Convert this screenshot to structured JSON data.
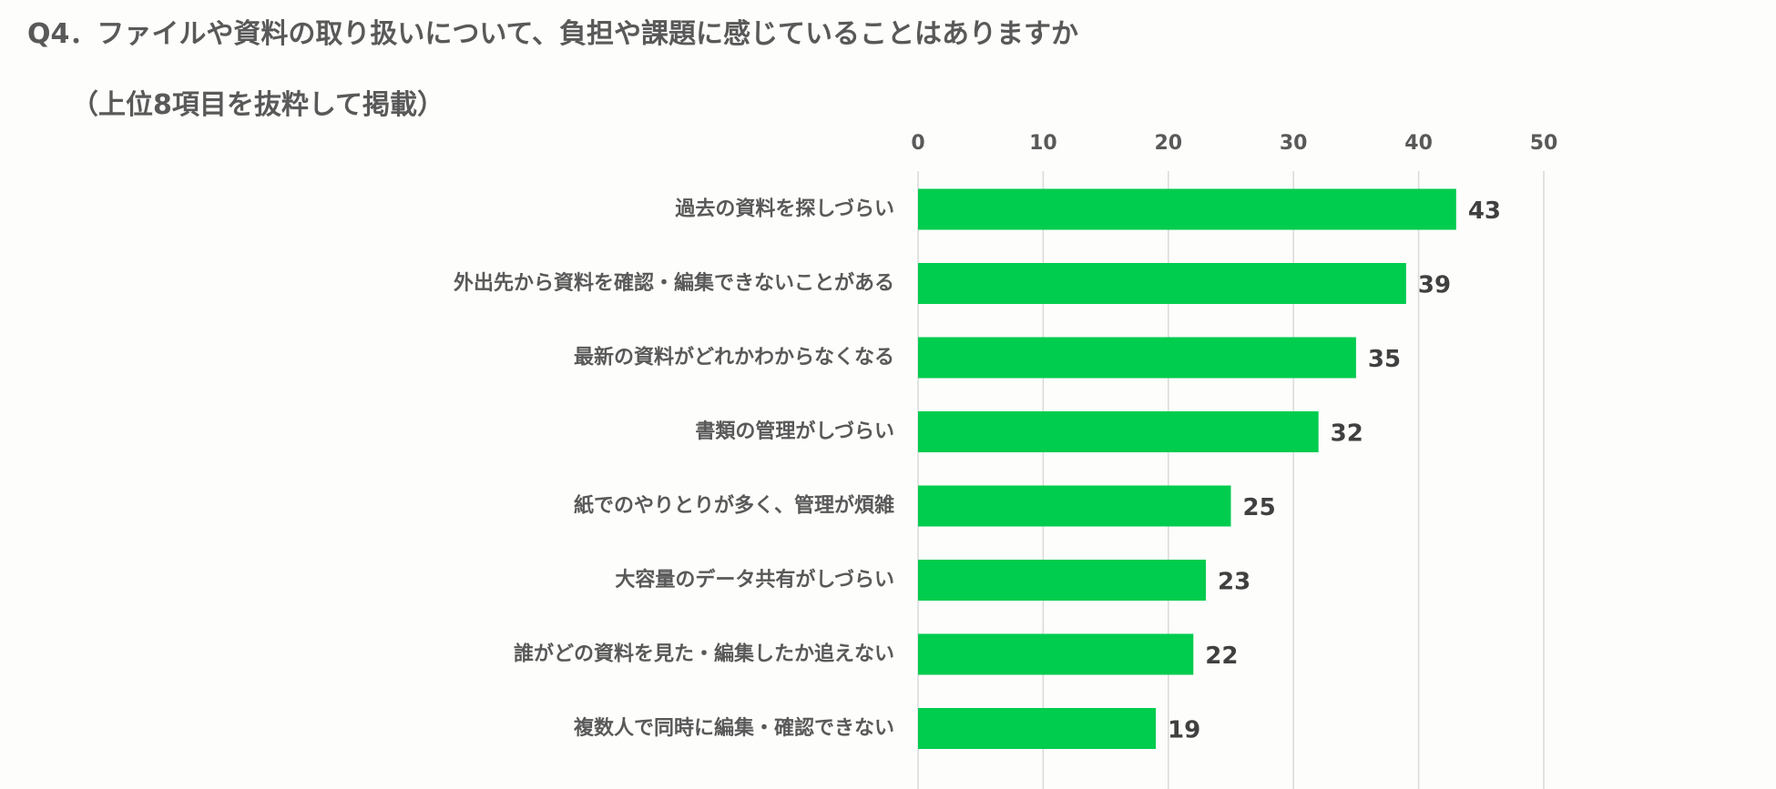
{
  "title": {
    "line1": "Q4．ファイルや資料の取り扱いについて、負担や課題に感じていることはありますか",
    "line2": "（上位8項目を抜粋して掲載）"
  },
  "chart_data": {
    "type": "bar",
    "orientation": "horizontal",
    "categories": [
      "過去の資料を探しづらい",
      "外出先から資料を確認・編集できないことがある",
      "最新の資料がどれかわからなくなる",
      "書類の管理がしづらい",
      "紙でのやりとりが多く、管理が煩雑",
      "大容量のデータ共有がしづらい",
      "誰がどの資料を見た・編集したか追えない",
      "複数人で同時に編集・確認できない"
    ],
    "values": [
      43,
      39,
      35,
      32,
      25,
      23,
      22,
      19
    ],
    "xlim": [
      0,
      50
    ],
    "xticks": [
      0,
      10,
      20,
      30,
      40,
      50
    ],
    "xaxis_position": "top",
    "grid": true,
    "data_labels": true,
    "bar_color": "#00cc4e"
  }
}
